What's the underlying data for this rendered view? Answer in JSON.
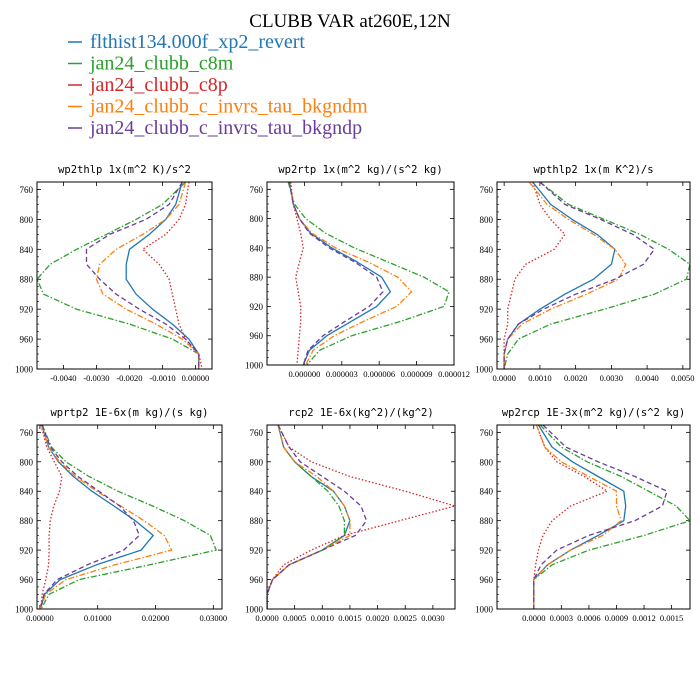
{
  "figure": {
    "title": "CLUBB VAR at260E,12N"
  },
  "legend": {
    "placement": "top-left",
    "entries": [
      {
        "name": "flthist134.000f_xp2_revert",
        "color": "#1f77b4",
        "dash": "solid"
      },
      {
        "name": "jan24_clubb_c8m",
        "color": "#2ca02c",
        "dash": "dashdot"
      },
      {
        "name": "jan24_clubb_c8p",
        "color": "#d62728",
        "dash": "dotted"
      },
      {
        "name": "jan24_clubb_c_invrs_tau_bkgndm",
        "color": "#ff7f0e",
        "dash": "dashdot"
      },
      {
        "name": "jan24_clubb_c_invrs_tau_bkgndp",
        "color": "#6a3d9a",
        "dash": "dashed"
      }
    ]
  },
  "chart_data": [
    {
      "type": "line",
      "title": "wp2thlp  1x(m^2 K)/s^2",
      "xlim": [
        -0.0048,
        0.0005
      ],
      "ylim": [
        1000,
        750
      ],
      "xticks": [
        -0.004,
        -0.003,
        -0.002,
        -0.001,
        0
      ],
      "xticklabels": [
        "-0.0040",
        "-0.0030",
        "-0.0020",
        "-0.0010",
        "0.00000"
      ],
      "yticks": [
        760,
        800,
        840,
        880,
        920,
        960,
        1000
      ],
      "y": [
        750,
        780,
        800,
        820,
        840,
        860,
        880,
        900,
        920,
        940,
        960,
        980,
        1000
      ],
      "series": [
        {
          "name": "flthist134.000f_xp2_revert",
          "values": [
            -0.0004,
            -0.0006,
            -0.0009,
            -0.0014,
            -0.002,
            -0.0021,
            -0.0021,
            -0.0018,
            -0.0013,
            -0.0007,
            -0.0002,
            0.0001,
            0.0001
          ]
        },
        {
          "name": "jan24_clubb_c8m",
          "values": [
            -0.0003,
            -0.001,
            -0.0018,
            -0.0027,
            -0.0036,
            -0.0044,
            -0.0048,
            -0.0046,
            -0.0036,
            -0.002,
            -0.0007,
            0.0001,
            0.0001
          ]
        },
        {
          "name": "jan24_clubb_c8p",
          "values": [
            -0.0002,
            -0.0003,
            -0.0005,
            -0.0009,
            -0.0016,
            -0.0011,
            -0.0008,
            -0.0007,
            -0.0006,
            -0.0005,
            -0.0003,
            0.0001,
            0.0002
          ]
        },
        {
          "name": "jan24_clubb_c_invrs_tau_bkgndm",
          "values": [
            -0.0003,
            -0.0005,
            -0.0009,
            -0.0016,
            -0.0024,
            -0.0029,
            -0.003,
            -0.0028,
            -0.0021,
            -0.0012,
            -0.0004,
            0.0001,
            0.0001
          ]
        },
        {
          "name": "jan24_clubb_c_invrs_tau_bkgndp",
          "values": [
            -0.0004,
            -0.0008,
            -0.0015,
            -0.0026,
            -0.0033,
            -0.0033,
            -0.0029,
            -0.0024,
            -0.0017,
            -0.0009,
            -0.0003,
            0.0001,
            0.0001
          ]
        }
      ]
    },
    {
      "type": "line",
      "title": "wp2rtp  1x(m^2 kg)/(s^2 kg)",
      "xlim": [
        -3e-06,
        1.2e-05
      ],
      "ylim": [
        1000,
        750
      ],
      "xticks": [
        0,
        3e-06,
        6e-06,
        9e-06,
        1.2e-05
      ],
      "xticklabels": [
        "0.000000",
        "0.000003",
        "0.000006",
        "0.000009",
        "0.000012"
      ],
      "yticks": [
        760,
        800,
        840,
        880,
        920,
        960,
        1000
      ],
      "y": [
        750,
        780,
        800,
        820,
        840,
        860,
        880,
        900,
        920,
        940,
        960,
        980,
        1000
      ],
      "series": [
        {
          "name": "flthist134.000f_xp2_revert",
          "values": [
            -1.2e-06,
            -9e-07,
            -4e-07,
            5e-07,
            2.2e-06,
            4.3e-06,
            6.2e-06,
            6.9e-06,
            5.8e-06,
            3.8e-06,
            1.8e-06,
            4e-07,
            -1e-07
          ]
        },
        {
          "name": "jan24_clubb_c8m",
          "values": [
            -1.3e-06,
            -8e-07,
            1e-07,
            1.7e-06,
            4e-06,
            6.8e-06,
            9.6e-06,
            1.16e-05,
            1.12e-05,
            7.8e-06,
            3.8e-06,
            1.2e-06,
            2e-07
          ]
        },
        {
          "name": "jan24_clubb_c8p",
          "values": [
            -1.1e-06,
            -9e-07,
            -6e-07,
            -3e-07,
            -1e-07,
            -4e-07,
            -7e-07,
            -5e-07,
            -3e-07,
            -3e-07,
            -4e-07,
            -5e-07,
            -6e-07
          ]
        },
        {
          "name": "jan24_clubb_c_invrs_tau_bkgndm",
          "values": [
            -1.2e-06,
            -9e-07,
            -4e-07,
            6e-07,
            2.5e-06,
            5.2e-06,
            7.5e-06,
            8.6e-06,
            7.4e-06,
            4.8e-06,
            2.4e-06,
            7e-07,
            1e-07
          ]
        },
        {
          "name": "jan24_clubb_c_invrs_tau_bkgndp",
          "values": [
            -1.2e-06,
            -9e-07,
            -4e-07,
            4e-07,
            2e-06,
            4.1e-06,
            5.8e-06,
            6.3e-06,
            5.2e-06,
            3.3e-06,
            1.5e-06,
            3e-07,
            -1e-07
          ]
        }
      ]
    },
    {
      "type": "line",
      "title": "wpthlp2  1x(m K^2)/s",
      "xlim": [
        -0.0002,
        0.0052
      ],
      "ylim": [
        1000,
        750
      ],
      "xticks": [
        0,
        0.001,
        0.002,
        0.003,
        0.004,
        0.005
      ],
      "xticklabels": [
        "0.0000",
        "0.0010",
        "0.0020",
        "0.0030",
        "0.0040",
        "0.0050"
      ],
      "yticks": [
        760,
        800,
        840,
        880,
        920,
        960,
        1000
      ],
      "y": [
        750,
        780,
        800,
        820,
        840,
        860,
        880,
        900,
        920,
        940,
        960,
        980,
        1000
      ],
      "series": [
        {
          "name": "flthist134.000f_xp2_revert",
          "values": [
            0.0008,
            0.0013,
            0.0019,
            0.0026,
            0.0031,
            0.003,
            0.0025,
            0.0017,
            0.001,
            0.0004,
            0.0001,
            0.0,
            0.0
          ]
        },
        {
          "name": "jan24_clubb_c8m",
          "values": [
            0.001,
            0.0018,
            0.0028,
            0.0038,
            0.0046,
            0.0052,
            0.0051,
            0.0042,
            0.0028,
            0.0013,
            0.0004,
            0.0001,
            0.0
          ]
        },
        {
          "name": "jan24_clubb_c8p",
          "values": [
            0.0008,
            0.001,
            0.0013,
            0.0017,
            0.0014,
            0.0006,
            0.0003,
            0.0002,
            0.0001,
            0.0001,
            0.0,
            0.0,
            0.0
          ]
        },
        {
          "name": "jan24_clubb_c_invrs_tau_bkgndm",
          "values": [
            0.0007,
            0.0012,
            0.0018,
            0.0025,
            0.0031,
            0.0034,
            0.0032,
            0.0023,
            0.0013,
            0.0005,
            0.0001,
            0.0,
            0.0
          ]
        },
        {
          "name": "jan24_clubb_c_invrs_tau_bkgndp",
          "values": [
            0.001,
            0.0017,
            0.0027,
            0.0036,
            0.0042,
            0.0039,
            0.0031,
            0.002,
            0.0011,
            0.0004,
            0.0001,
            0.0,
            0.0
          ]
        }
      ]
    },
    {
      "type": "line",
      "title": "wprtp2  1E-6x(m kg)/(s kg)",
      "xlim": [
        -0.0005,
        0.0315
      ],
      "ylim": [
        1000,
        750
      ],
      "xticks": [
        0,
        0.01,
        0.02,
        0.03
      ],
      "xticklabels": [
        "0.00000",
        "0.01000",
        "0.02000",
        "0.03000"
      ],
      "yticks": [
        760,
        800,
        840,
        880,
        920,
        960,
        1000
      ],
      "y": [
        750,
        780,
        800,
        820,
        840,
        860,
        880,
        900,
        920,
        940,
        960,
        980,
        1000
      ],
      "series": [
        {
          "name": "flthist134.000f_xp2_revert",
          "values": [
            0.0003,
            0.0015,
            0.0032,
            0.0058,
            0.009,
            0.0128,
            0.0165,
            0.0196,
            0.0175,
            0.0098,
            0.0035,
            0.0008,
            0.0001
          ]
        },
        {
          "name": "jan24_clubb_c8m",
          "values": [
            0.0004,
            0.002,
            0.0045,
            0.0085,
            0.0135,
            0.0195,
            0.025,
            0.0295,
            0.0305,
            0.019,
            0.0068,
            0.0016,
            0.0002
          ]
        },
        {
          "name": "jan24_clubb_c8p",
          "values": [
            0.0002,
            0.0012,
            0.0025,
            0.0038,
            0.0034,
            0.0024,
            0.0018,
            0.0016,
            0.0016,
            0.0015,
            0.001,
            0.0004,
            0.0001
          ]
        },
        {
          "name": "jan24_clubb_c_invrs_tau_bkgndm",
          "values": [
            0.0003,
            0.0015,
            0.0034,
            0.0062,
            0.0098,
            0.014,
            0.018,
            0.0215,
            0.0228,
            0.013,
            0.0045,
            0.001,
            0.0001
          ]
        },
        {
          "name": "jan24_clubb_c_invrs_tau_bkgndp",
          "values": [
            0.0004,
            0.0018,
            0.0038,
            0.0066,
            0.0102,
            0.0138,
            0.0162,
            0.0172,
            0.0145,
            0.0082,
            0.003,
            0.0007,
            0.0001
          ]
        }
      ]
    },
    {
      "type": "line",
      "title": "rcp2  1E-6x(kg^2)/(kg^2)",
      "xlim": [
        0,
        0.0034
      ],
      "ylim": [
        1000,
        750
      ],
      "xticks": [
        0,
        0.0005,
        0.001,
        0.0015,
        0.002,
        0.0025,
        0.003
      ],
      "xticklabels": [
        "0.0000",
        "0.0005",
        "0.0010",
        "0.0015",
        "0.0020",
        "0.0025",
        "0.0030"
      ],
      "yticks": [
        760,
        800,
        840,
        880,
        920,
        960,
        1000
      ],
      "y": [
        750,
        780,
        800,
        820,
        840,
        860,
        880,
        900,
        920,
        940,
        960,
        980,
        1000
      ],
      "series": [
        {
          "name": "flthist134.000f_xp2_revert",
          "values": [
            0.0002,
            0.0003,
            0.0005,
            0.0008,
            0.0012,
            0.0014,
            0.0015,
            0.0014,
            0.001,
            0.0004,
            0.0001,
            0.0,
            0.0
          ]
        },
        {
          "name": "jan24_clubb_c8m",
          "values": [
            0.0002,
            0.0003,
            0.0005,
            0.0008,
            0.0011,
            0.0013,
            0.0014,
            0.0014,
            0.001,
            0.0004,
            0.0001,
            0.0,
            0.0
          ]
        },
        {
          "name": "jan24_clubb_c8p",
          "values": [
            0.0002,
            0.0004,
            0.0008,
            0.0015,
            0.0025,
            0.0034,
            0.0024,
            0.0014,
            0.0008,
            0.0003,
            0.0001,
            0.0,
            0.0
          ]
        },
        {
          "name": "jan24_clubb_c_invrs_tau_bkgndm",
          "values": [
            0.0002,
            0.0003,
            0.0005,
            0.0009,
            0.0012,
            0.0014,
            0.0015,
            0.0015,
            0.001,
            0.0004,
            0.0001,
            0.0,
            0.0
          ]
        },
        {
          "name": "jan24_clubb_c_invrs_tau_bkgndp",
          "values": [
            0.0002,
            0.0004,
            0.0006,
            0.001,
            0.0014,
            0.0017,
            0.0018,
            0.0016,
            0.001,
            0.0004,
            0.0001,
            0.0,
            0.0
          ]
        }
      ]
    },
    {
      "type": "line",
      "title": "wp2rcp  1E-3x(m^2 kg)/(s^2 kg)",
      "xlim": [
        -0.0004,
        0.0017
      ],
      "ylim": [
        1000,
        750
      ],
      "xticks": [
        0,
        0.0003,
        0.0006,
        0.0009,
        0.0012,
        0.0015
      ],
      "xticklabels": [
        "0.0000",
        "0.0003",
        "0.0006",
        "0.0009",
        "0.0012",
        "0.0015"
      ],
      "yticks": [
        760,
        800,
        840,
        880,
        920,
        960,
        1000
      ],
      "y": [
        750,
        780,
        800,
        820,
        840,
        860,
        880,
        900,
        920,
        940,
        960,
        980,
        1000
      ],
      "series": [
        {
          "name": "flthist134.000f_xp2_revert",
          "values": [
            5e-05,
            0.0002,
            0.00042,
            0.0007,
            0.00098,
            0.001,
            0.00098,
            0.0007,
            0.0004,
            0.00015,
            0.0,
            0.0,
            0.0
          ]
        },
        {
          "name": "jan24_clubb_c8m",
          "values": [
            7e-05,
            0.0003,
            0.00058,
            0.00095,
            0.00125,
            0.00155,
            0.0017,
            0.0012,
            0.0006,
            0.0002,
            0.0,
            0.0,
            0.0
          ]
        },
        {
          "name": "jan24_clubb_c8p",
          "values": [
            3e-05,
            0.00012,
            0.00025,
            0.00055,
            0.0008,
            0.0004,
            0.0002,
            0.0001,
            5e-05,
            2e-05,
            0.0,
            0.0,
            0.0
          ]
        },
        {
          "name": "jan24_clubb_c_invrs_tau_bkgndm",
          "values": [
            3e-05,
            0.00012,
            0.0003,
            0.0006,
            0.0009,
            0.0009,
            0.00095,
            0.00075,
            0.0004,
            0.00015,
            0.0,
            0.0,
            0.0
          ]
        },
        {
          "name": "jan24_clubb_c_invrs_tau_bkgndp",
          "values": [
            0.0001,
            0.00035,
            0.0007,
            0.0011,
            0.00145,
            0.0014,
            0.0011,
            0.0006,
            0.00025,
            8e-05,
            0.0,
            0.0,
            0.0
          ]
        }
      ]
    }
  ]
}
